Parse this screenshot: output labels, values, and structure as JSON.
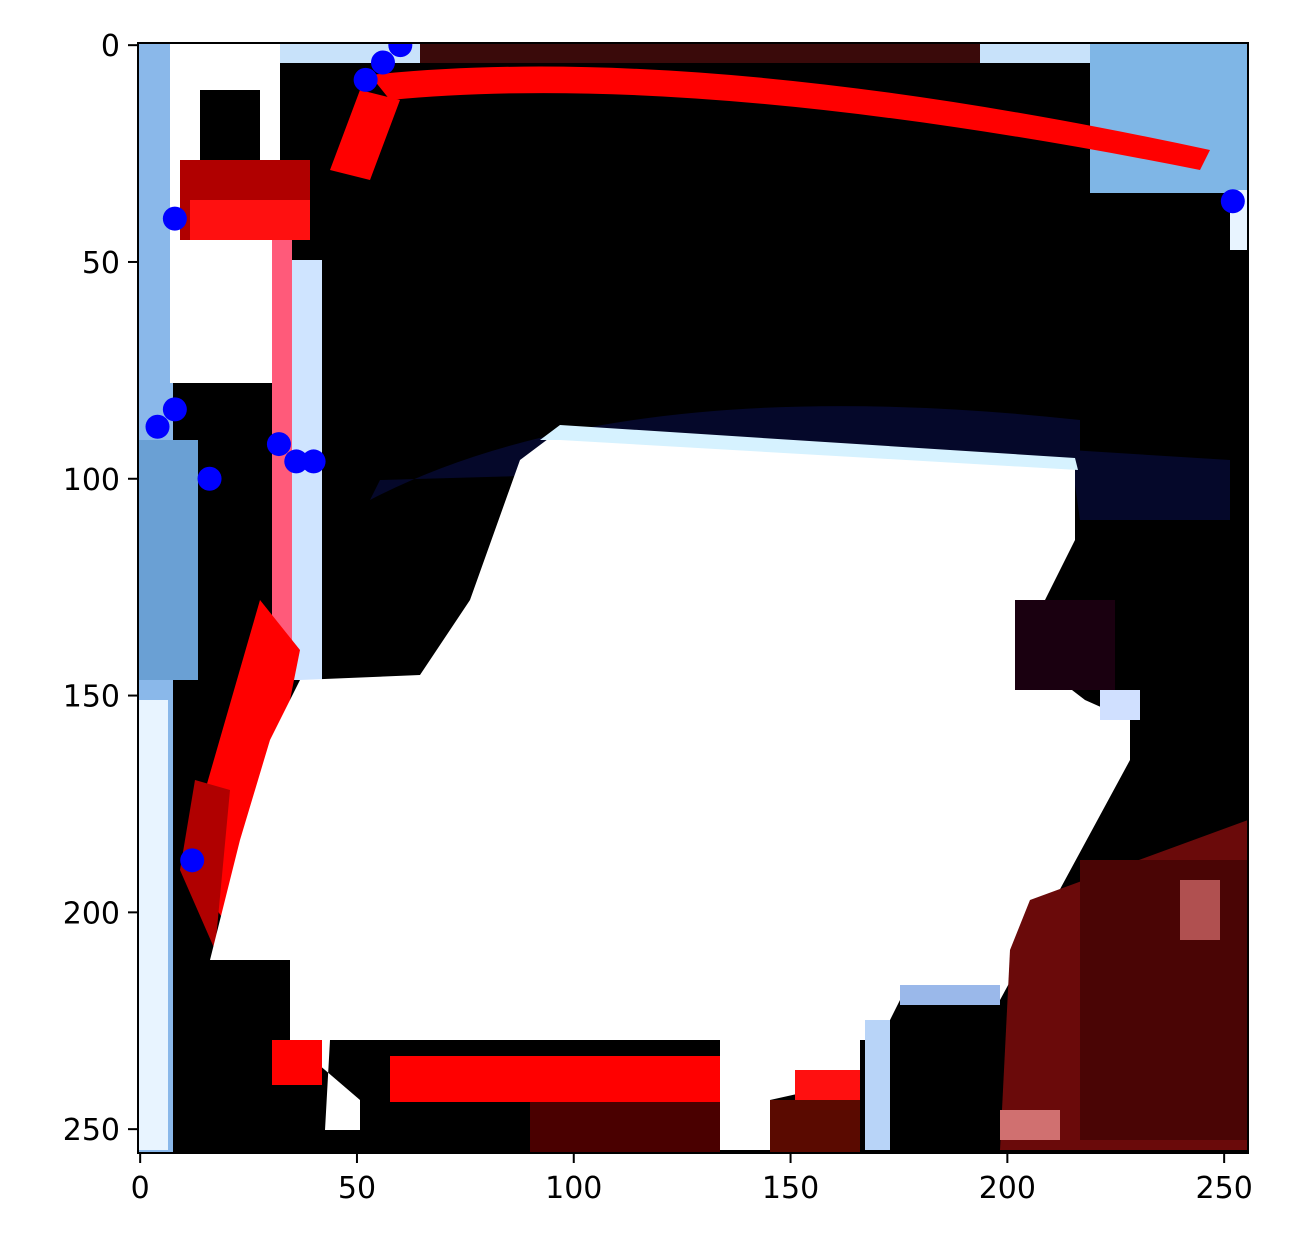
{
  "chart_data": {
    "type": "scatter",
    "title": "",
    "xlabel": "",
    "ylabel": "",
    "xlim": [
      -0.5,
      255.5
    ],
    "ylim": [
      255.5,
      -0.5
    ],
    "y_axis_inverted": true,
    "grid": false,
    "legend": "none",
    "xticks": [
      0,
      50,
      100,
      150,
      200,
      250
    ],
    "yticks": [
      0,
      50,
      100,
      150,
      200,
      250
    ],
    "xtick_labels": [
      "0",
      "50",
      "100",
      "150",
      "200",
      "250"
    ],
    "ytick_labels": [
      "0",
      "50",
      "100",
      "150",
      "200",
      "250"
    ],
    "background": "image",
    "series": [
      {
        "marker_color": "#0000ff",
        "points": [
          {
            "x": 60,
            "y": 0
          },
          {
            "x": 56,
            "y": 4
          },
          {
            "x": 52,
            "y": 8
          },
          {
            "x": 252,
            "y": 36
          },
          {
            "x": 8,
            "y": 40
          },
          {
            "x": 8,
            "y": 84
          },
          {
            "x": 4,
            "y": 88
          },
          {
            "x": 32,
            "y": 92
          },
          {
            "x": 36,
            "y": 96
          },
          {
            "x": 40,
            "y": 96
          },
          {
            "x": 16,
            "y": 100
          },
          {
            "x": 12,
            "y": 188
          }
        ]
      }
    ]
  }
}
